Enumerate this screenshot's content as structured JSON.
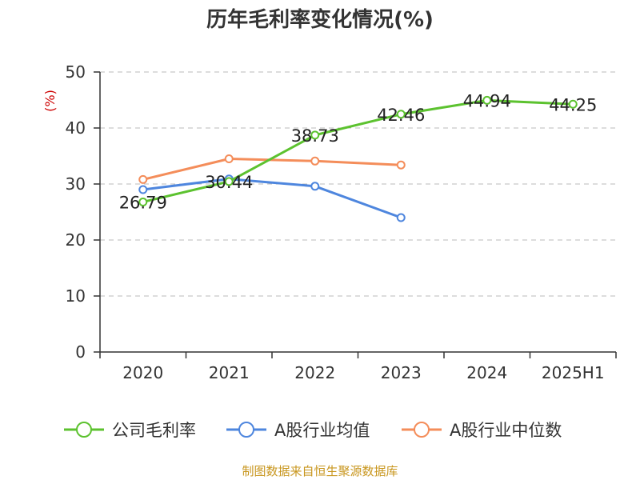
{
  "chart_data": {
    "type": "line",
    "title": "历年毛利率变化情况(%)",
    "ylabel": "(%)",
    "categories": [
      "2020",
      "2021",
      "2022",
      "2023",
      "2024",
      "2025H1"
    ],
    "ylim": [
      0,
      50
    ],
    "yticks": [
      0,
      10,
      20,
      30,
      40,
      50
    ],
    "grid": true,
    "legend_position": "bottom",
    "series": [
      {
        "name": "公司毛利率",
        "color": "#5cc22f",
        "values": [
          26.79,
          30.44,
          38.73,
          42.46,
          44.94,
          44.25
        ],
        "labels": [
          "26.79",
          "30.44",
          "38.73",
          "42.46",
          "44.94",
          "44.25"
        ]
      },
      {
        "name": "A股行业均值",
        "color": "#4e86de",
        "values": [
          29.0,
          30.9,
          29.6,
          24.0,
          null,
          null
        ]
      },
      {
        "name": "A股行业中位数",
        "color": "#f48d5a",
        "values": [
          30.8,
          34.5,
          34.1,
          33.4,
          null,
          null
        ]
      }
    ]
  },
  "source_text": "制图数据来自恒生聚源数据库",
  "colors": {
    "ylabel": "#cc0000",
    "source": "#c8961e",
    "grid": "#bbbbbb",
    "axis": "#333333"
  }
}
